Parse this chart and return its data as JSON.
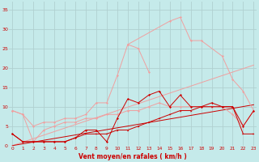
{
  "x": [
    0,
    1,
    2,
    3,
    4,
    5,
    6,
    7,
    8,
    9,
    10,
    11,
    12,
    13,
    14,
    15,
    16,
    17,
    18,
    19,
    20,
    21,
    22,
    23
  ],
  "bg_color": "#c5eaea",
  "grid_color": "#b0d0d0",
  "xlabel": "Vent moyen/en rafales ( km/h )",
  "ylim": [
    0,
    37
  ],
  "xlim": [
    -0.3,
    23.3
  ],
  "yticks": [
    0,
    5,
    10,
    15,
    20,
    25,
    30,
    35
  ],
  "line_linear_dark": [
    0.0,
    0.46,
    0.91,
    1.37,
    1.83,
    2.28,
    2.74,
    3.2,
    3.65,
    4.11,
    4.57,
    5.02,
    5.48,
    5.93,
    6.39,
    6.85,
    7.3,
    7.76,
    8.22,
    8.67,
    9.13,
    9.58,
    10.04,
    10.5
  ],
  "line_linear_pink": [
    0.0,
    0.9,
    1.8,
    2.7,
    3.6,
    4.5,
    5.4,
    6.3,
    7.2,
    8.1,
    9.0,
    9.9,
    10.8,
    11.7,
    12.6,
    13.5,
    14.4,
    15.3,
    16.2,
    17.1,
    18.0,
    18.9,
    19.8,
    20.7
  ],
  "line_pink_low": [
    9,
    8,
    1,
    4,
    5,
    6,
    6,
    7,
    7,
    8,
    8,
    9,
    9,
    10,
    11,
    10,
    10,
    10,
    10,
    10,
    10,
    8,
    5,
    9
  ],
  "line_pink_high": [
    null,
    null,
    null,
    null,
    null,
    null,
    null,
    null,
    null,
    null,
    null,
    26,
    null,
    null,
    null,
    32,
    33,
    27,
    27,
    null,
    23,
    17,
    14,
    9
  ],
  "line_pink_mid": [
    9,
    8,
    5,
    6,
    6,
    7,
    7,
    8,
    11,
    11,
    18,
    26,
    25,
    19,
    null,
    null,
    null,
    null,
    null,
    null,
    null,
    null,
    null,
    null
  ],
  "line_dark_jagged": [
    3,
    1,
    1,
    1,
    1,
    1,
    2,
    4,
    4,
    1,
    7,
    12,
    11,
    13,
    14,
    10,
    13,
    10,
    10,
    11,
    10,
    10,
    5,
    9
  ],
  "line_dark_low": [
    3,
    1,
    1,
    1,
    1,
    1,
    2,
    3,
    3,
    3,
    4,
    4,
    5,
    6,
    7,
    8,
    9,
    9,
    10,
    10,
    10,
    10,
    3,
    3
  ],
  "color_dark_red": "#cc0000",
  "color_med_pink": "#e87070",
  "color_light_pink": "#f0a0a0",
  "color_very_light_pink": "#f5bbbb"
}
